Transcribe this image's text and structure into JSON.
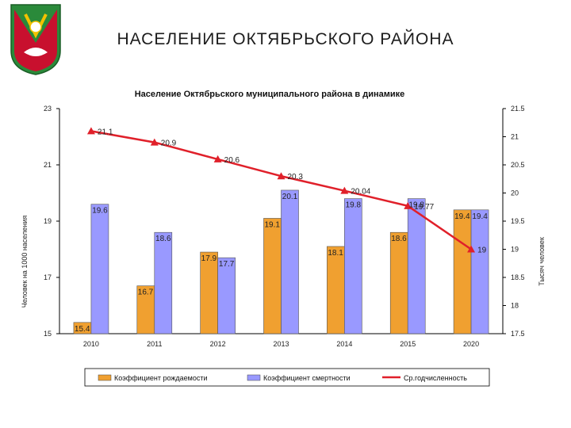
{
  "slide": {
    "title": "НАСЕЛЕНИЕ  ОКТЯБРЬСКОГО  РАЙОНА"
  },
  "emblem": {
    "icon": "district-coat-of-arms-icon",
    "colors": [
      "#2a8a3a",
      "#c8102e",
      "#f2c200",
      "#ffffff"
    ]
  },
  "chart_data": {
    "type": "bar",
    "title": "Население Октябрьского муниципального района в динамике",
    "categories": [
      "2010",
      "2011",
      "2012",
      "2013",
      "2014",
      "2015",
      "2020"
    ],
    "series": [
      {
        "name": "Коэффициент рождаемости",
        "kind": "bar",
        "axis": "left",
        "color": "#f0a030",
        "values": [
          15.4,
          16.7,
          17.9,
          19.1,
          18.1,
          18.6,
          19.4
        ]
      },
      {
        "name": "Коэффициент смертности",
        "kind": "bar",
        "axis": "left",
        "color": "#9999ff",
        "values": [
          19.6,
          18.6,
          17.7,
          20.1,
          19.8,
          19.8,
          19.4
        ]
      },
      {
        "name": "Ср.годчисленность",
        "kind": "line",
        "axis": "right",
        "color": "#e0202a",
        "values": [
          21.1,
          20.9,
          20.6,
          20.3,
          20.04,
          19.77,
          19
        ]
      }
    ],
    "data_labels": {
      "birth": [
        "15.4",
        "16.7",
        "17.9",
        "19.1",
        "18.1",
        "18.6",
        "19.4"
      ],
      "death": [
        "19.6",
        "18.6",
        "17.7",
        "20.1",
        "19.8",
        "19.8",
        "19.4"
      ],
      "population": [
        "21.1",
        "20.9",
        "20.6",
        "20.3",
        "20.04",
        "19.77",
        "19"
      ]
    },
    "left_axis": {
      "label": "Человек на 1000 населения",
      "min": 15,
      "max": 23,
      "ticks": [
        "15",
        "17",
        "19",
        "21",
        "23"
      ]
    },
    "right_axis": {
      "label": "Тысяч человек",
      "min": 17.5,
      "max": 21.5,
      "ticks": [
        "17.5",
        "18",
        "18.5",
        "19",
        "19.5",
        "20",
        "20.5",
        "21",
        "21.5"
      ]
    },
    "grid": false,
    "legend": "bottom"
  }
}
